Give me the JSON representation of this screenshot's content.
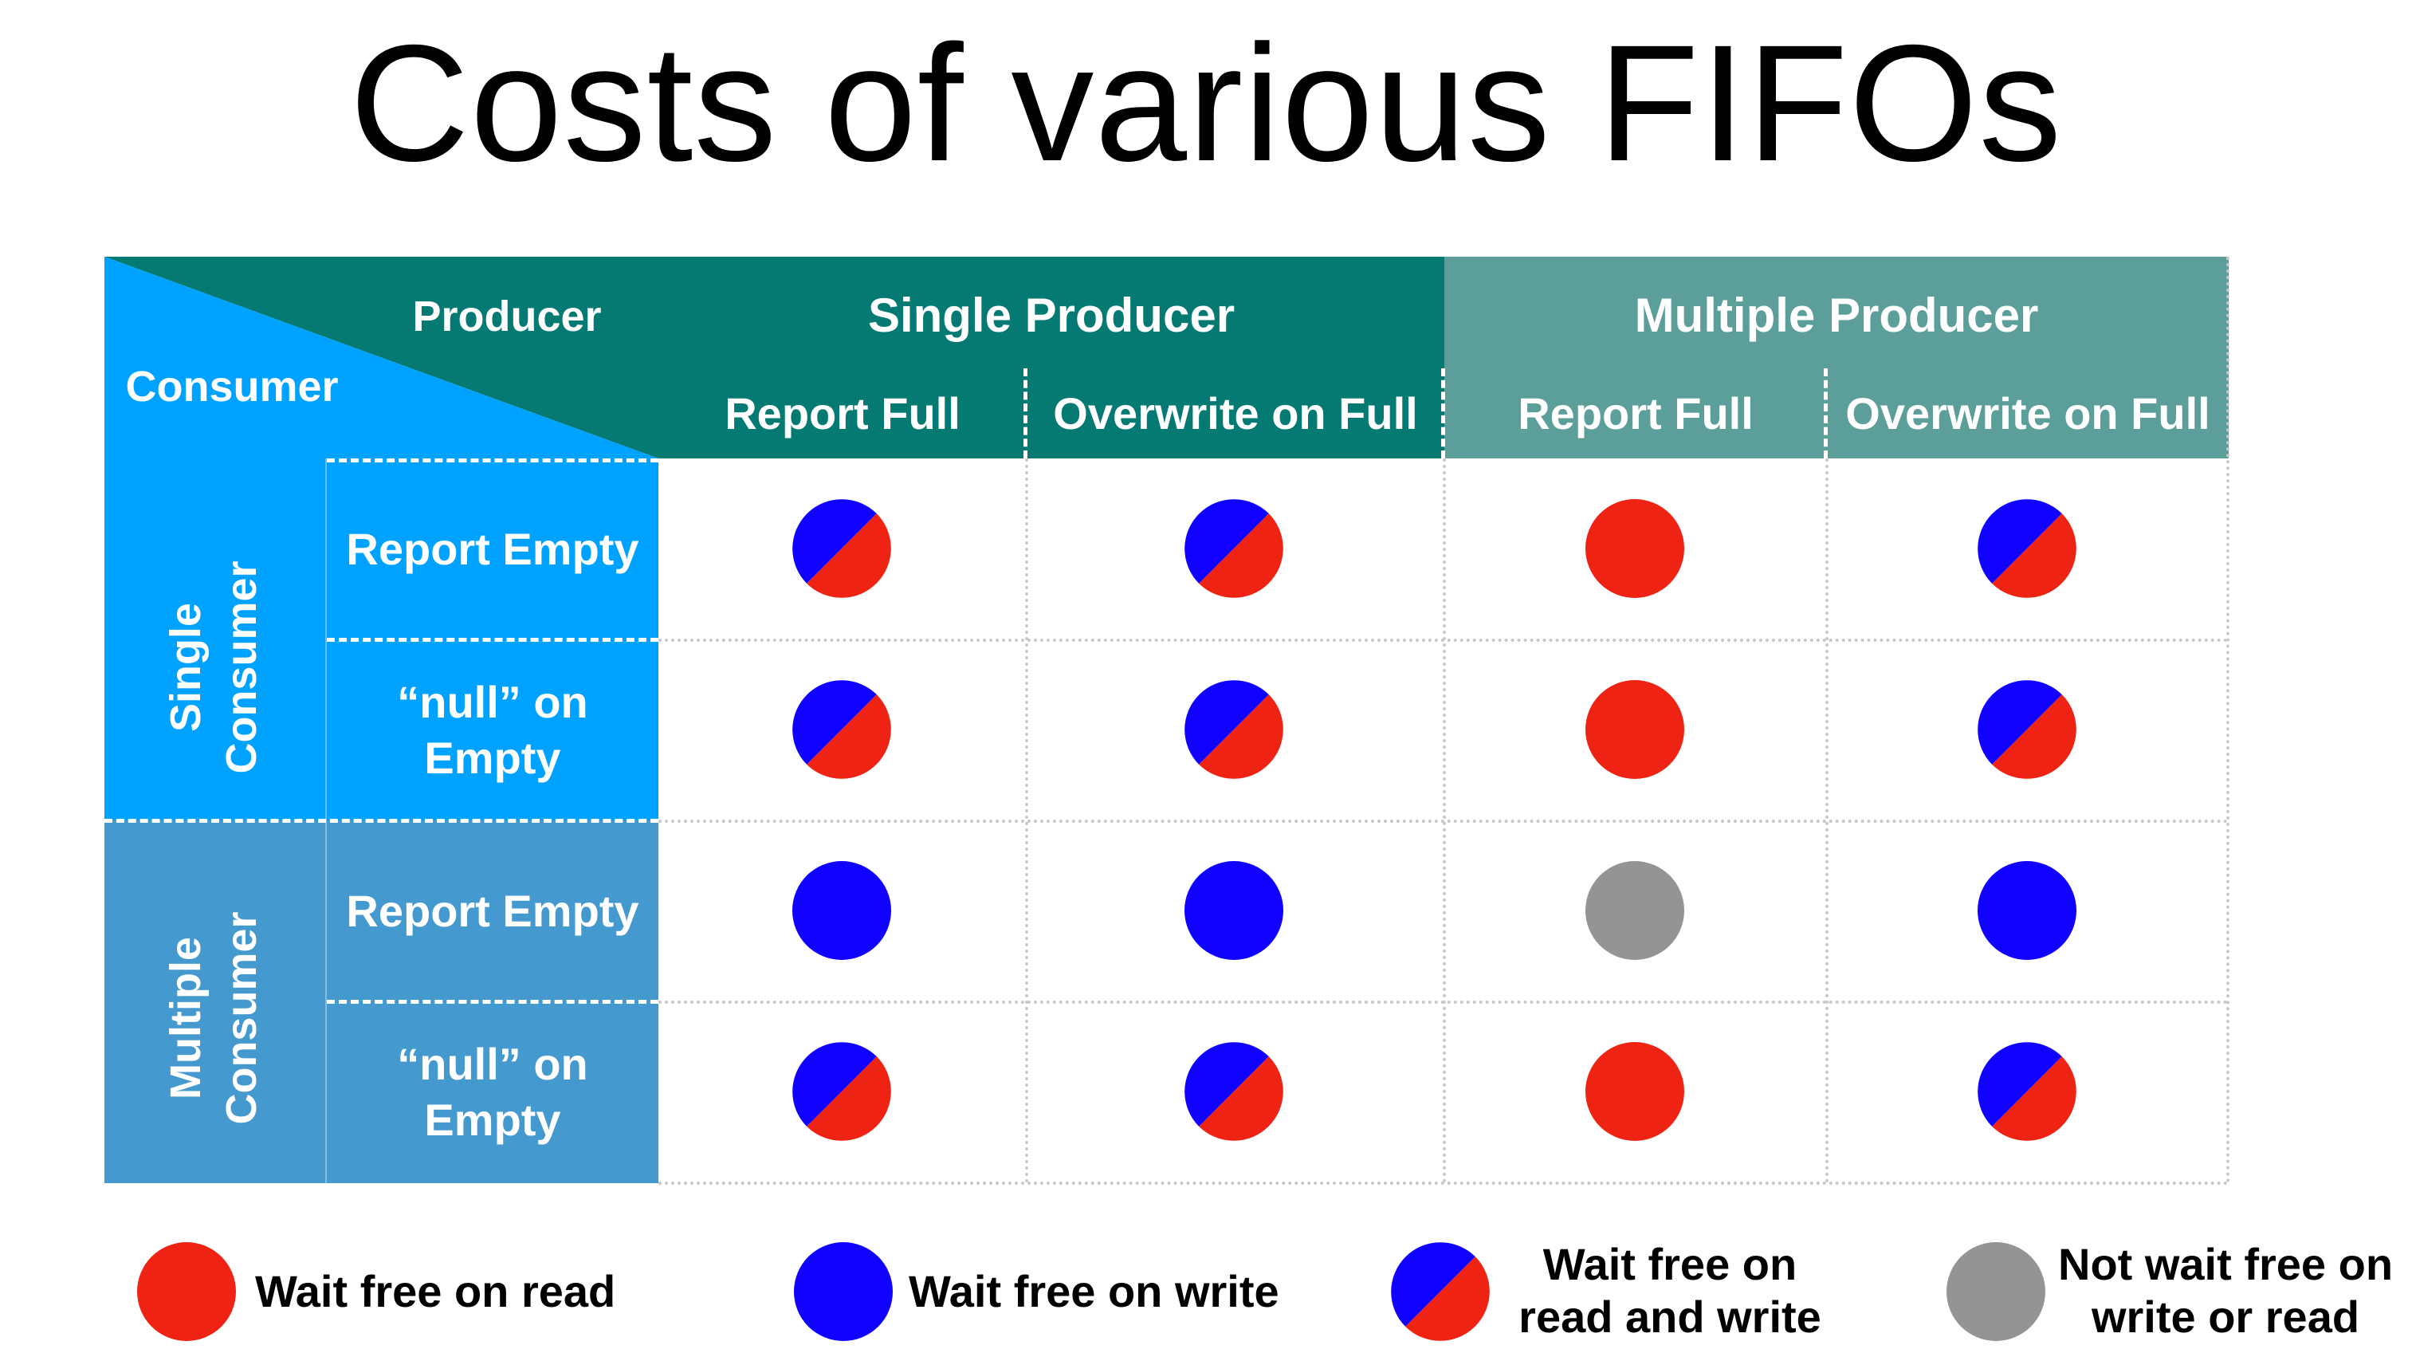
{
  "title": "Costs of various FIFOs",
  "corner": {
    "producer_label": "Producer",
    "consumer_label": "Consumer"
  },
  "producer_groups": [
    {
      "label": "Single Producer",
      "color": "#057a72",
      "subs": [
        "Report Full",
        "Overwrite on Full"
      ]
    },
    {
      "label": "Multiple Producer",
      "color": "#5b9e9a",
      "subs": [
        "Report Full",
        "Overwrite on Full"
      ]
    }
  ],
  "consumer_groups": [
    {
      "label_line1": "Single",
      "label_line2": "Consumer",
      "color": "#00a2ff",
      "subs": [
        {
          "line1": "Report Empty",
          "line2": ""
        },
        {
          "line1": "“null” on",
          "line2": "Empty"
        }
      ]
    },
    {
      "label_line1": "Multiple",
      "label_line2": "Consumer",
      "color": "#4499cf",
      "subs": [
        {
          "line1": "Report Empty",
          "line2": ""
        },
        {
          "line1": "“null” on",
          "line2": "Empty"
        }
      ]
    }
  ],
  "cell_values": [
    [
      "read-and-write",
      "read-and-write",
      "read",
      "read-and-write"
    ],
    [
      "read-and-write",
      "read-and-write",
      "read",
      "read-and-write"
    ],
    [
      "write",
      "write",
      "none",
      "write"
    ],
    [
      "read-and-write",
      "read-and-write",
      "read",
      "read-and-write"
    ]
  ],
  "colors": {
    "red": "#ee2314",
    "blue": "#1000ff",
    "gray": "#949494"
  },
  "legend": [
    {
      "kind": "read",
      "line1": "Wait free on read",
      "line2": ""
    },
    {
      "kind": "write",
      "line1": "Wait free on write",
      "line2": ""
    },
    {
      "kind": "read-and-write",
      "line1": "Wait free on",
      "line2": "read and write"
    },
    {
      "kind": "none",
      "line1": "Not wait free on",
      "line2": "write or read"
    }
  ]
}
